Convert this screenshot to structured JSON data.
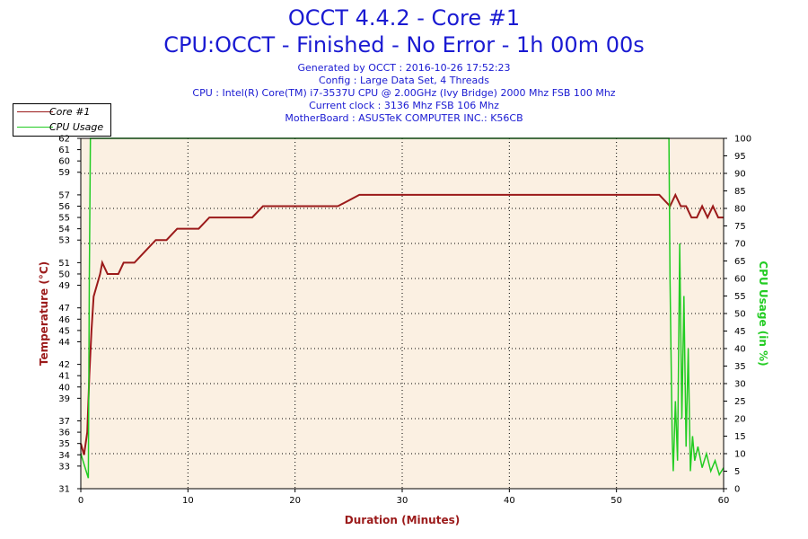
{
  "header": {
    "title_line1": "OCCT 4.4.2 - Core #1",
    "title_line2": "CPU:OCCT - Finished - No Error - 1h 00m 00s",
    "generated": "Generated by OCCT : 2016-10-26 17:52:23",
    "config": "Config : Large Data Set, 4 Threads",
    "cpu": "CPU : Intel(R) Core(TM) i7-3537U CPU @ 2.00GHz (Ivy Bridge) 2000 Mhz FSB 100 Mhz",
    "clock": "Current clock : 3136 Mhz FSB 106 Mhz",
    "motherboard": "MotherBoard : ASUSTeK COMPUTER INC.: K56CB"
  },
  "legend": {
    "items": [
      {
        "label": "Core #1",
        "color": "#9b1a1a"
      },
      {
        "label": "CPU Usage",
        "color": "#22cc22"
      }
    ]
  },
  "chart_data": {
    "type": "line",
    "xlabel": "Duration (Minutes)",
    "ylabel_left": "Temperature (°C)",
    "ylabel_right": "CPU Usage (in %)",
    "xlim": [
      0,
      60
    ],
    "ylim_left": [
      31,
      62
    ],
    "ylim_right": [
      0,
      100
    ],
    "x_ticks": [
      0,
      10,
      20,
      30,
      40,
      50,
      60
    ],
    "y_left_ticks": [
      31,
      33,
      34,
      35,
      36,
      37,
      39,
      40,
      41,
      42,
      44,
      45,
      46,
      47,
      49,
      50,
      51,
      53,
      54,
      55,
      56,
      57,
      59,
      60,
      61,
      62
    ],
    "y_right_ticks": [
      0,
      5,
      10,
      15,
      20,
      25,
      30,
      35,
      40,
      45,
      50,
      55,
      60,
      65,
      70,
      75,
      80,
      85,
      90,
      95,
      100
    ],
    "grid": true,
    "plot_background": "#fbf0e2",
    "series": [
      {
        "name": "Core #1",
        "axis": "left",
        "color": "#9b1a1a",
        "x": [
          0,
          0.3,
          0.6,
          0.8,
          1.0,
          1.2,
          1.5,
          1.8,
          2.0,
          2.5,
          3.0,
          3.5,
          4.0,
          5.0,
          6.0,
          7.0,
          8.0,
          9.0,
          10.0,
          11.0,
          12.0,
          13.0,
          14.0,
          15.0,
          16.0,
          17.0,
          18.0,
          19.0,
          20.0,
          22.0,
          24.0,
          26.0,
          28.0,
          30.0,
          35.0,
          40.0,
          45.0,
          50.0,
          54.0,
          55.0,
          55.5,
          56.0,
          56.5,
          57.0,
          57.5,
          58.0,
          58.5,
          59.0,
          59.5,
          60.0
        ],
        "y": [
          35,
          34,
          36,
          41,
          45,
          48,
          49,
          50,
          51,
          50,
          50,
          50,
          51,
          51,
          52,
          53,
          53,
          54,
          54,
          54,
          55,
          55,
          55,
          55,
          55,
          56,
          56,
          56,
          56,
          56,
          56,
          57,
          57,
          57,
          57,
          57,
          57,
          57,
          57,
          56,
          57,
          56,
          56,
          55,
          55,
          56,
          55,
          56,
          55,
          55
        ]
      },
      {
        "name": "CPU Usage",
        "axis": "right",
        "color": "#22cc22",
        "x": [
          0,
          0.5,
          0.7,
          0.8,
          0.9,
          10.8,
          10.85,
          10.9,
          54.9,
          55.0,
          55.2,
          55.3,
          55.5,
          55.7,
          55.9,
          56.1,
          56.3,
          56.5,
          56.7,
          56.9,
          57.1,
          57.3,
          57.6,
          58.0,
          58.4,
          58.8,
          59.2,
          59.6,
          60.0
        ],
        "y": [
          10,
          5,
          3,
          60,
          100,
          100,
          100,
          100,
          100,
          60,
          15,
          5,
          25,
          8,
          70,
          20,
          55,
          12,
          40,
          5,
          15,
          8,
          12,
          6,
          10,
          5,
          8,
          4,
          6
        ]
      }
    ]
  }
}
